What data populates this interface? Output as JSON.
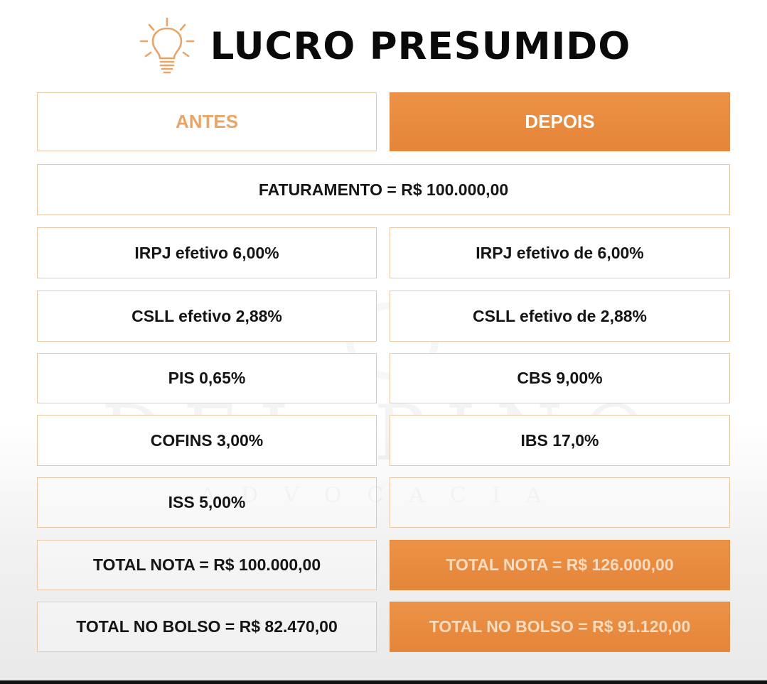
{
  "header": {
    "title": "LUCRO PRESUMIDO",
    "icon": "lightbulb-icon",
    "icon_color": "#e9a468"
  },
  "watermark": {
    "name": "DEL PINO",
    "sub": "ADVOCACIA"
  },
  "columns": {
    "antes_label": "ANTES",
    "depois_label": "DEPOIS"
  },
  "faturamento": "FATURAMENTO = R$ 100.000,00",
  "rows": {
    "irpj": {
      "antes": "IRPJ efetivo 6,00%",
      "depois": "IRPJ efetivo de 6,00%"
    },
    "csll": {
      "antes": "CSLL efetivo 2,88%",
      "depois": "CSLL efetivo de 2,88%"
    },
    "pis_cbs": {
      "antes": "PIS 0,65%",
      "depois": "CBS 9,00%"
    },
    "cofins_ibs": {
      "antes": "COFINS 3,00%",
      "depois": "IBS 17,0%"
    },
    "iss": {
      "antes": "ISS 5,00%",
      "depois": ""
    }
  },
  "totals": {
    "nota": {
      "antes": "TOTAL NOTA = R$ 100.000,00",
      "depois": "TOTAL NOTA = R$ 126.000,00"
    },
    "bolso": {
      "antes": "TOTAL NO BOLSO = R$ 82.470,00",
      "depois": "TOTAL NO BOLSO = R$ 91.120,00"
    }
  },
  "colors": {
    "accent_orange": "#e88c40",
    "border": "#e9c8a4",
    "text_dark": "#151515"
  }
}
